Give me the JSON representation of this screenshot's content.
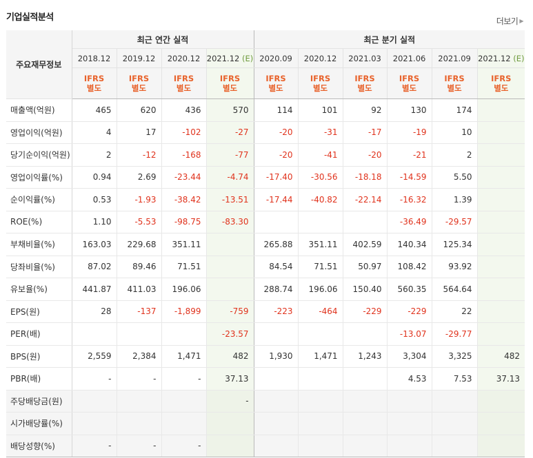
{
  "header": {
    "title": "기업실적분석",
    "more_label": "더보기"
  },
  "table": {
    "label_header": "주요재무정보",
    "groups": {
      "annual": "최근 연간 실적",
      "quarterly": "최근 분기 실적"
    },
    "periods": [
      "2018.12",
      "2019.12",
      "2020.12",
      "2021.12",
      "2020.09",
      "2020.12",
      "2021.03",
      "2021.06",
      "2021.09",
      "2021.12"
    ],
    "estimate_marker": "(E)",
    "ifrs_top": "IFRS",
    "ifrs_bottom": "별도",
    "rows": [
      {
        "label": "매출액(억원)",
        "values": [
          "465",
          "620",
          "436",
          "570",
          "114",
          "101",
          "92",
          "130",
          "174",
          ""
        ]
      },
      {
        "label": "영업이익(억원)",
        "values": [
          "4",
          "17",
          "-102",
          "-27",
          "-20",
          "-31",
          "-17",
          "-19",
          "10",
          ""
        ]
      },
      {
        "label": "당기순이익(억원)",
        "values": [
          "2",
          "-12",
          "-168",
          "-77",
          "-20",
          "-41",
          "-20",
          "-21",
          "2",
          ""
        ]
      },
      {
        "label": "영업이익률(%)",
        "values": [
          "0.94",
          "2.69",
          "-23.44",
          "-4.74",
          "-17.40",
          "-30.56",
          "-18.18",
          "-14.59",
          "5.50",
          ""
        ]
      },
      {
        "label": "순이익률(%)",
        "values": [
          "0.53",
          "-1.93",
          "-38.42",
          "-13.51",
          "-17.44",
          "-40.82",
          "-22.14",
          "-16.32",
          "1.39",
          ""
        ]
      },
      {
        "label": "ROE(%)",
        "values": [
          "1.10",
          "-5.53",
          "-98.75",
          "-83.30",
          "",
          "",
          "",
          "-36.49",
          "-29.57",
          ""
        ]
      },
      {
        "label": "부채비율(%)",
        "values": [
          "163.03",
          "229.68",
          "351.11",
          "",
          "265.88",
          "351.11",
          "402.59",
          "140.34",
          "125.34",
          ""
        ]
      },
      {
        "label": "당좌비율(%)",
        "values": [
          "87.02",
          "89.46",
          "71.51",
          "",
          "84.54",
          "71.51",
          "50.97",
          "108.42",
          "93.92",
          ""
        ]
      },
      {
        "label": "유보율(%)",
        "values": [
          "441.87",
          "411.03",
          "196.06",
          "",
          "288.74",
          "196.06",
          "150.40",
          "560.35",
          "564.64",
          ""
        ]
      },
      {
        "label": "EPS(원)",
        "values": [
          "28",
          "-137",
          "-1,899",
          "-759",
          "-223",
          "-464",
          "-229",
          "-229",
          "22",
          ""
        ]
      },
      {
        "label": "PER(배)",
        "values": [
          "",
          "",
          "",
          "-23.57",
          "",
          "",
          "",
          "-13.07",
          "-29.77",
          ""
        ]
      },
      {
        "label": "BPS(원)",
        "values": [
          "2,559",
          "2,384",
          "1,471",
          "482",
          "1,930",
          "1,471",
          "1,243",
          "3,304",
          "3,325",
          "482"
        ]
      },
      {
        "label": "PBR(배)",
        "values": [
          "-",
          "-",
          "-",
          "37.13",
          "",
          "",
          "",
          "4.53",
          "7.53",
          "37.13"
        ]
      },
      {
        "label": "주당배당금(원)",
        "values": [
          "",
          "",
          "",
          "-",
          "",
          "",
          "",
          "",
          "",
          ""
        ]
      },
      {
        "label": "시가배당률(%)",
        "values": [
          "",
          "",
          "",
          "",
          "",
          "",
          "",
          "",
          "",
          ""
        ]
      },
      {
        "label": "배당성향(%)",
        "values": [
          "-",
          "-",
          "-",
          "",
          "",
          "",
          "",
          "",
          "",
          ""
        ]
      }
    ]
  },
  "colors": {
    "negative": "#e0321c",
    "ifrs": "#e8622b",
    "estimate_bg": "#f3f8ee",
    "estimate_marker": "#6f9b3e"
  }
}
